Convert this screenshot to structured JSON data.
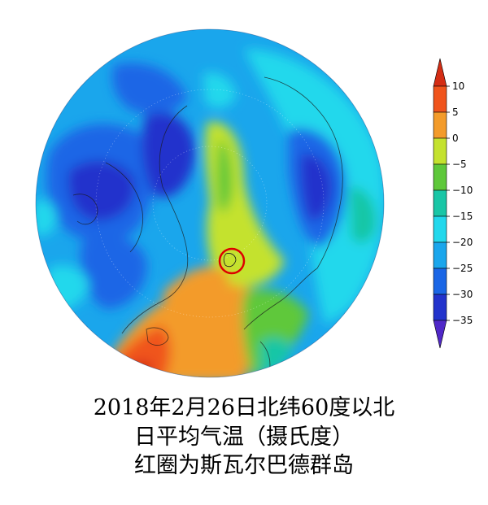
{
  "figure": {
    "caption_lines": [
      "2018年2月26日北纬60度以北",
      "日平均气温（摄氏度）",
      "红圈为斯瓦尔巴德群岛"
    ]
  },
  "map": {
    "projection": "north polar stereographic",
    "extent": "north of 60°N",
    "variable": "daily mean air temperature",
    "marker": {
      "type": "circle",
      "color": "#dd0000",
      "region": "斯瓦尔巴德群岛"
    }
  },
  "colorbar": {
    "orientation": "vertical",
    "placement": "right",
    "tick_labels": [
      "10",
      "5",
      "0",
      "−5",
      "−10",
      "−15",
      "−20",
      "−25",
      "−30",
      "−35"
    ],
    "bins": [
      {
        "color": "#d42d14"
      },
      {
        "color": "#f0541c"
      },
      {
        "color": "#f39b2a"
      },
      {
        "color": "#c4e22e"
      },
      {
        "color": "#5ec83a"
      },
      {
        "color": "#19c6a6"
      },
      {
        "color": "#22d8ec"
      },
      {
        "color": "#1aa6ec"
      },
      {
        "color": "#1a66e6"
      },
      {
        "color": "#2233cc"
      },
      {
        "color": "#5028c8"
      }
    ]
  }
}
